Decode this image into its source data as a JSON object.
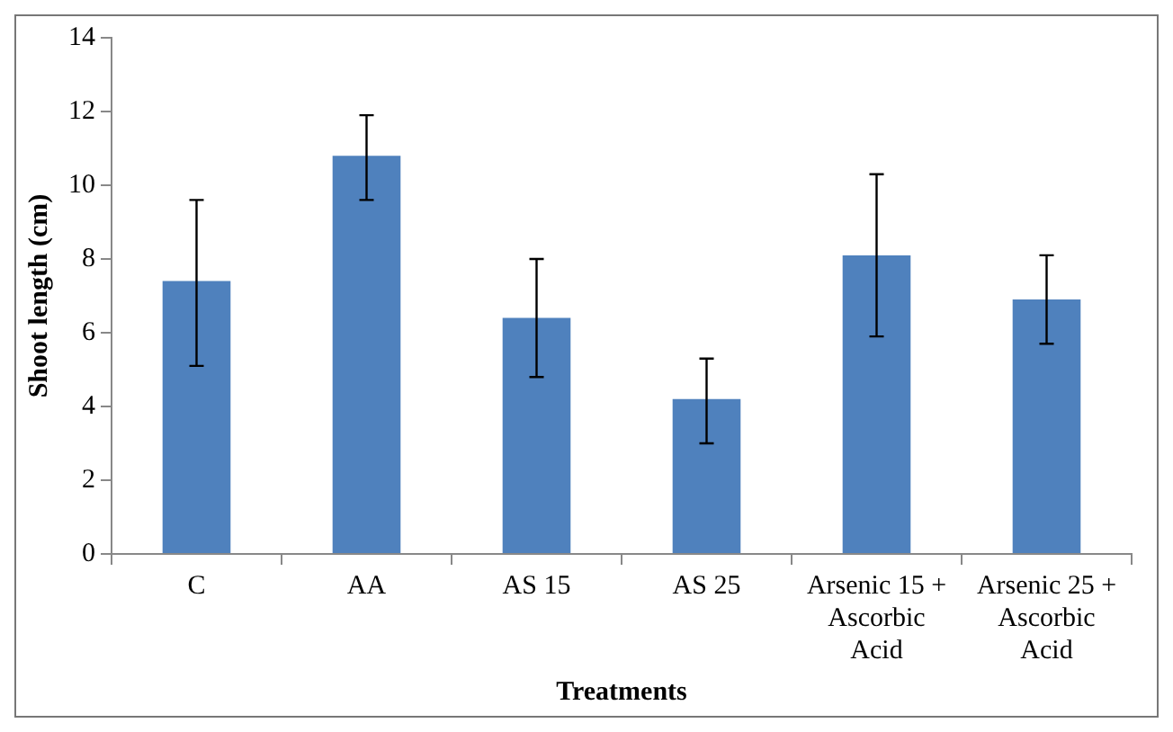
{
  "chart_data": {
    "type": "bar",
    "xlabel": "Treatments",
    "ylabel": "Shoot length (cm)",
    "categories": [
      "C",
      "AA",
      "AS 15",
      "AS 25",
      "Arsenic 15 + Ascorbic Acid",
      "Arsenic 25 + Ascorbic Acid"
    ],
    "values": [
      7.4,
      10.8,
      6.4,
      4.2,
      8.1,
      6.9
    ],
    "errors": [
      [
        5.1,
        9.6
      ],
      [
        9.6,
        11.9
      ],
      [
        4.8,
        8.0
      ],
      [
        3.0,
        5.3
      ],
      [
        5.9,
        10.3
      ],
      [
        5.7,
        8.1
      ]
    ],
    "color": "#4f81bd",
    "ylim": [
      0,
      14
    ],
    "yticks": [
      0,
      2,
      4,
      6,
      8,
      10,
      12,
      14
    ],
    "grid": false,
    "legend": false
  }
}
